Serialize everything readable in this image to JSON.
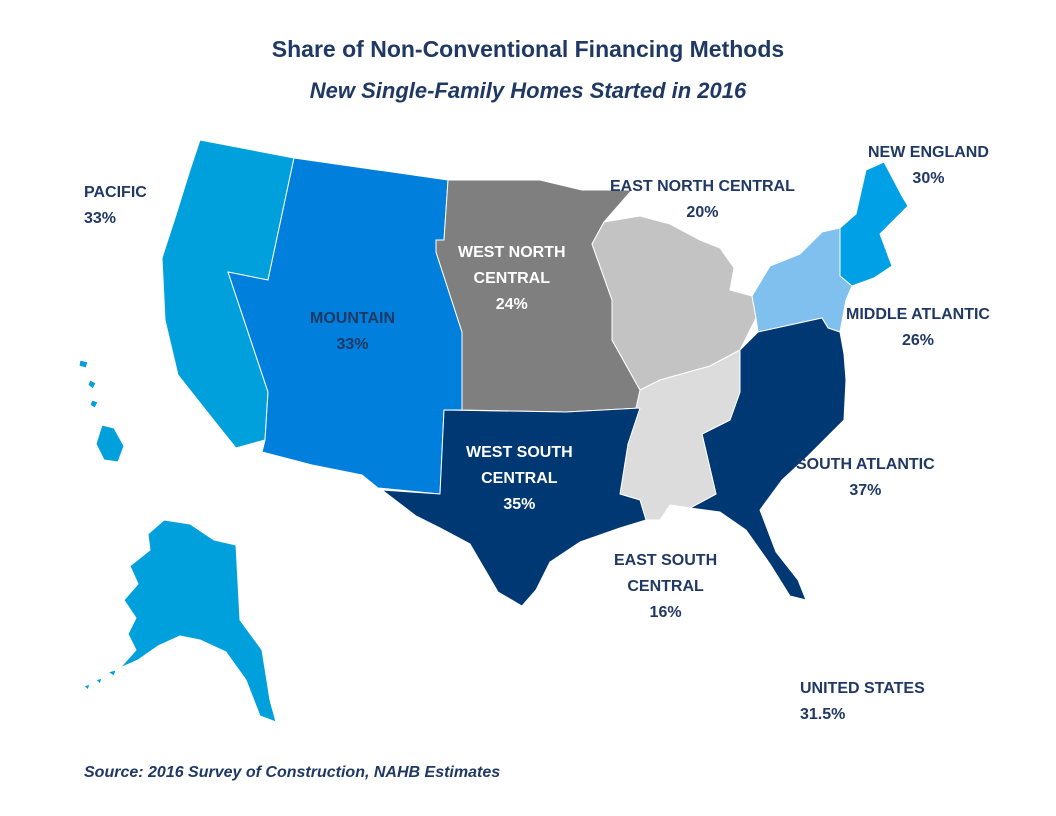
{
  "title": "Share of Non-Conventional Financing Methods",
  "subtitle": "New Single-Family Homes Started in 2016",
  "source": "Source: 2016 Survey of Construction, NAHB Estimates",
  "colors": {
    "pacific": "#00a0dc",
    "mountain": "#0080dc",
    "west_north_central": "#7f7f7f",
    "east_north_central": "#c3c3c3",
    "new_england": "#00a0e6",
    "middle_atlantic": "#7fc0ee",
    "south_atlantic": "#003873",
    "east_south_central": "#dcdcdc",
    "west_south_central": "#003873",
    "label_dark": "#1f3864"
  },
  "regions": {
    "pacific": {
      "name": "PACIFIC",
      "value": "33%"
    },
    "mountain": {
      "name": "MOUNTAIN",
      "value": "33%"
    },
    "west_north_central": {
      "name1": "WEST NORTH",
      "name2": "CENTRAL",
      "value": "24%"
    },
    "east_north_central": {
      "name": "EAST NORTH CENTRAL",
      "value": "20%"
    },
    "new_england": {
      "name": "NEW ENGLAND",
      "value": "30%"
    },
    "middle_atlantic": {
      "name": "MIDDLE ATLANTIC",
      "value": "26%"
    },
    "south_atlantic": {
      "name": "SOUTH ATLANTIC",
      "value": "37%"
    },
    "east_south_central": {
      "name1": "EAST SOUTH",
      "name2": "CENTRAL",
      "value": "16%"
    },
    "west_south_central": {
      "name1": "WEST SOUTH",
      "name2": "CENTRAL",
      "value": "35%"
    },
    "united_states": {
      "name": "UNITED STATES",
      "value": "31.5%"
    }
  }
}
